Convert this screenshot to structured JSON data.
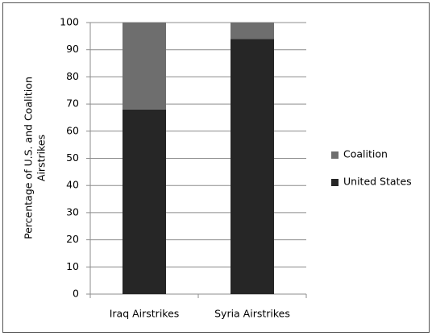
{
  "chart_data": {
    "type": "stacked_bar",
    "ylabel": [
      "Percentage of U.S. and Coalition",
      "Airstrikes"
    ],
    "categories": [
      "Iraq Airstrikes",
      "Syria Airstrikes"
    ],
    "series": [
      {
        "name": "United States",
        "color": "#262626",
        "values": [
          68,
          94
        ]
      },
      {
        "name": "Coalition",
        "color": "#6e6e6e",
        "values": [
          32,
          6
        ]
      }
    ],
    "ylim": [
      0,
      100
    ],
    "yticks": [
      0,
      10,
      20,
      30,
      40,
      50,
      60,
      70,
      80,
      90,
      100
    ],
    "grid": true,
    "legend": "right"
  }
}
